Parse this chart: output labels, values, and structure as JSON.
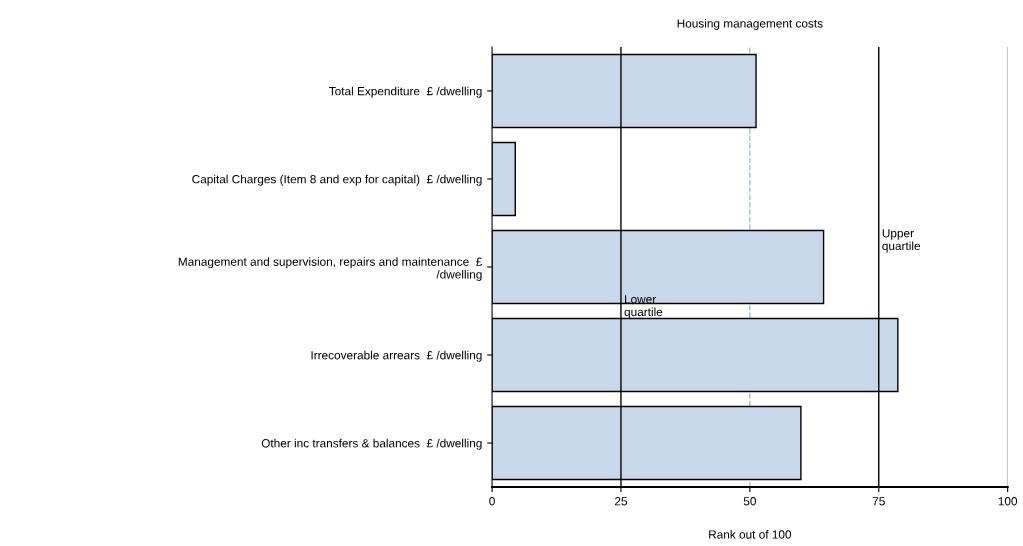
{
  "chart_data": {
    "type": "bar",
    "orientation": "horizontal",
    "title": "Housing management costs",
    "xlabel": "Rank out of 100",
    "categories": [
      "Total Expenditure  £ /dwelling",
      "Capital Charges (Item 8 and exp for capital)  £ /dwelling",
      "Management and supervision, repairs and maintenance  £\n/dwelling",
      "Irrecoverable arrears  £ /dwelling",
      "Other inc transfers & balances  £ /dwelling"
    ],
    "values": [
      51.2,
      4.5,
      64.3,
      78.7,
      59.9
    ],
    "color": "#c9d7ea",
    "xlim": [
      0,
      100
    ],
    "xticks": [
      0,
      25,
      50,
      75,
      100
    ],
    "grid": false,
    "ref_lines": [
      {
        "axis": "x",
        "value": 25,
        "label": "Lower\nquartile",
        "color": "#000000",
        "line_style": "solid"
      },
      {
        "axis": "x",
        "value": 75,
        "label": "Upper\nquartile",
        "color": "#000000",
        "line_style": "solid"
      },
      {
        "axis": "x",
        "value": 50,
        "label": null,
        "color": "#a9bccf",
        "line_style": "dashed"
      },
      {
        "axis": "x",
        "value": 100,
        "label": null,
        "color": "#a0a8b8",
        "line_style": "solid"
      }
    ]
  }
}
